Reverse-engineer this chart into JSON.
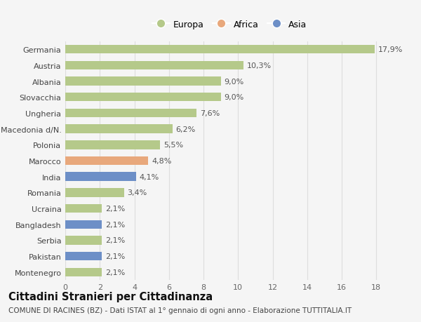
{
  "categories": [
    "Montenegro",
    "Pakistan",
    "Serbia",
    "Bangladesh",
    "Ucraina",
    "Romania",
    "India",
    "Marocco",
    "Polonia",
    "Macedonia d/N.",
    "Ungheria",
    "Slovacchia",
    "Albania",
    "Austria",
    "Germania"
  ],
  "values": [
    2.1,
    2.1,
    2.1,
    2.1,
    2.1,
    3.4,
    4.1,
    4.8,
    5.5,
    6.2,
    7.6,
    9.0,
    9.0,
    10.3,
    17.9
  ],
  "labels": [
    "2,1%",
    "2,1%",
    "2,1%",
    "2,1%",
    "2,1%",
    "3,4%",
    "4,1%",
    "4,8%",
    "5,5%",
    "6,2%",
    "7,6%",
    "9,0%",
    "9,0%",
    "10,3%",
    "17,9%"
  ],
  "bar_colors": [
    "#b5c98a",
    "#6d8fc7",
    "#b5c98a",
    "#6d8fc7",
    "#b5c98a",
    "#b5c98a",
    "#6d8fc7",
    "#e8a87c",
    "#b5c98a",
    "#b5c98a",
    "#b5c98a",
    "#b5c98a",
    "#b5c98a",
    "#b5c98a",
    "#b5c98a"
  ],
  "legend_labels": [
    "Europa",
    "Africa",
    "Asia"
  ],
  "legend_colors": [
    "#b5c98a",
    "#e8a87c",
    "#6d8fc7"
  ],
  "title": "Cittadini Stranieri per Cittadinanza",
  "subtitle": "COMUNE DI RACINES (BZ) - Dati ISTAT al 1° gennaio di ogni anno - Elaborazione TUTTITALIA.IT",
  "xlim": [
    0,
    19
  ],
  "xticks": [
    0,
    2,
    4,
    6,
    8,
    10,
    12,
    14,
    16,
    18
  ],
  "background_color": "#f5f5f5",
  "plot_bg_color": "#f5f5f5",
  "grid_color": "#dddddd",
  "bar_height": 0.55,
  "label_fontsize": 8,
  "tick_fontsize": 8,
  "title_fontsize": 10.5,
  "subtitle_fontsize": 7.5
}
